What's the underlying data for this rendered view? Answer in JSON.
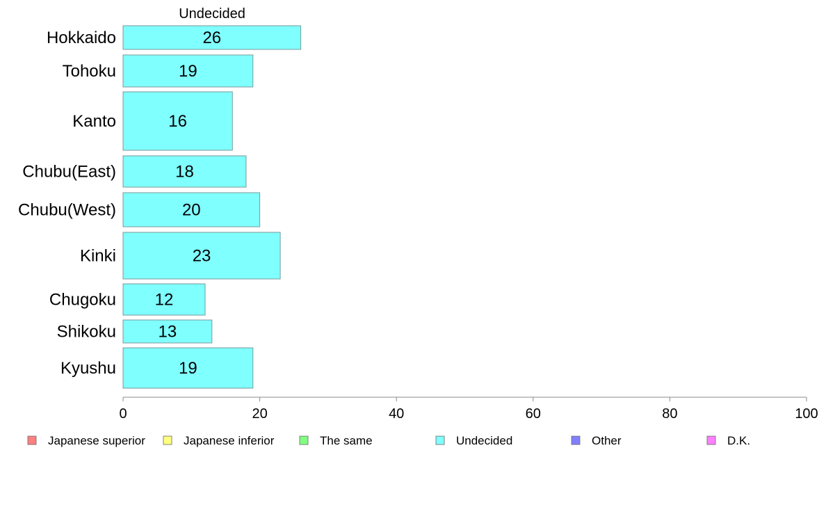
{
  "chart_data": {
    "type": "bar",
    "orientation": "horizontal",
    "title": "Undecided",
    "categories": [
      "Hokkaido",
      "Tohoku",
      "Kanto",
      "Chubu(East)",
      "Chubu(West)",
      "Kinki",
      "Chugoku",
      "Shikoku",
      "Kyushu"
    ],
    "series": [
      {
        "name": "Undecided",
        "values": [
          26,
          19,
          16,
          18,
          20,
          23,
          12,
          13,
          19
        ],
        "color": "#80ffff"
      }
    ],
    "xlim": [
      0,
      100
    ],
    "xticks": [
      0,
      20,
      40,
      60,
      80,
      100
    ],
    "grid": false,
    "legend": {
      "placement": "bottom",
      "entries": [
        {
          "label": "Japanese superior",
          "color": "#ff8080"
        },
        {
          "label": "Japanese inferior",
          "color": "#ffff80"
        },
        {
          "label": "The same",
          "color": "#80ff80"
        },
        {
          "label": "Undecided",
          "color": "#80ffff"
        },
        {
          "label": "Other",
          "color": "#8080ff"
        },
        {
          "label": "D.K.",
          "color": "#ff80ff"
        }
      ]
    }
  }
}
